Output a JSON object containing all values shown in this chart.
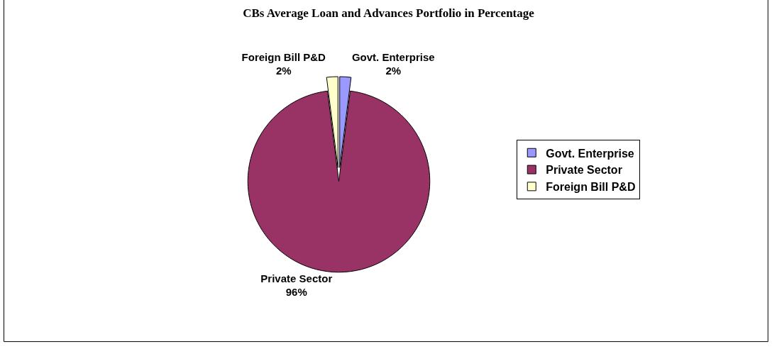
{
  "chart_data": {
    "type": "pie",
    "title": "CBs Average Loan and Advances Portfolio in Percentage",
    "categories": [
      "Govt. Enterprise",
      "Private Sector",
      "Foreign Bill P&D"
    ],
    "values": [
      2,
      96,
      2
    ],
    "value_labels": [
      "2%",
      "96%",
      "2%"
    ],
    "colors": [
      "#9999ff",
      "#993366",
      "#ffffcc"
    ],
    "legend": "right"
  }
}
